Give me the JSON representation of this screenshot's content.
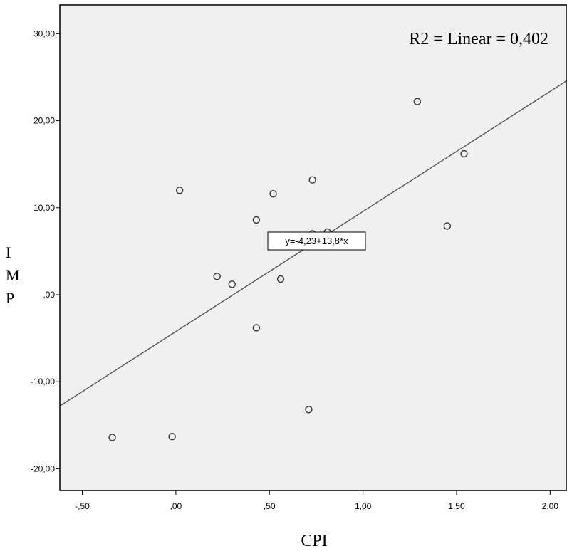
{
  "chart_data": {
    "type": "scatter",
    "xlabel": "CPI",
    "ylabel": "IMP",
    "xlim": [
      -0.62,
      2.09
    ],
    "ylim": [
      -22.5,
      33.3
    ],
    "x_ticks": [
      -0.5,
      0,
      0.5,
      1.0,
      1.5,
      2.0
    ],
    "x_tick_labels": [
      "-,50",
      ",00",
      ",50",
      "1,00",
      "1,50",
      "2,00"
    ],
    "y_ticks": [
      30,
      20,
      10,
      0,
      -10,
      -20
    ],
    "y_tick_labels": [
      "30,00",
      "20,00",
      "10,00",
      ",00",
      "-10,00",
      "-20,00"
    ],
    "points": [
      {
        "x": 1.29,
        "y": 22.2
      },
      {
        "x": 1.54,
        "y": 16.2
      },
      {
        "x": 0.02,
        "y": 12.0
      },
      {
        "x": 0.73,
        "y": 13.2
      },
      {
        "x": 0.52,
        "y": 11.6
      },
      {
        "x": 0.43,
        "y": 8.6
      },
      {
        "x": 1.45,
        "y": 7.9
      },
      {
        "x": 0.73,
        "y": 7.0
      },
      {
        "x": 0.81,
        "y": 7.2
      },
      {
        "x": 0.22,
        "y": 2.1
      },
      {
        "x": 0.3,
        "y": 1.2
      },
      {
        "x": 0.56,
        "y": 1.8
      },
      {
        "x": 0.43,
        "y": -3.8
      },
      {
        "x": 0.71,
        "y": -13.2
      },
      {
        "x": -0.34,
        "y": -16.4
      },
      {
        "x": -0.02,
        "y": -16.3
      }
    ],
    "fit_line": {
      "intercept": -4.23,
      "slope": 13.8
    },
    "annotations": {
      "r2": "R2 = Linear = 0,402",
      "equation": "y=-4,23+13,8*x"
    },
    "grid": false,
    "background_color": "#f0f0f0"
  }
}
